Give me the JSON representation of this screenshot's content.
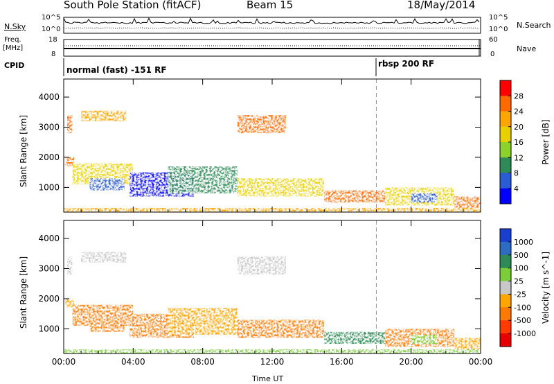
{
  "header": {
    "station": "South Pole Station (fitACF)",
    "beam": "Beam 15",
    "date": "18/May/2014"
  },
  "strip_labels": {
    "nsky": "N.Sky",
    "nsky_ticks": [
      "10^5",
      "10^0"
    ],
    "nsearch": "N.Search",
    "nsearch_ticks": [
      "10^5",
      "10^0"
    ],
    "freq_line1": "Freq.",
    "freq_line2": "[MHz]",
    "freq_ticks": [
      "18",
      "8"
    ],
    "nave": "Nave",
    "nave_ticks": [
      "60",
      "0"
    ],
    "cpid": "CPID",
    "cpid_modes": [
      {
        "label": "normal (fast) -151 RF",
        "start_hour": 0
      },
      {
        "label": "rbsp 200 RF",
        "start_hour": 18
      }
    ]
  },
  "chart_data": [
    {
      "type": "heatmap",
      "name": "power-panel",
      "xlabel": "",
      "ylabel": "Slant Range [km]",
      "xlim": [
        0,
        24
      ],
      "ylim": [
        180,
        4600
      ],
      "yticks": [
        1000,
        2000,
        3000,
        4000
      ],
      "colorbar": {
        "label": "Power [dB]",
        "ticks": [
          "28",
          "24",
          "20",
          "16",
          "12",
          "8",
          "4"
        ],
        "colors": [
          "#ff0000",
          "#ff6a00",
          "#ffa500",
          "#e8d000",
          "#8cd22a",
          "#2e8b57",
          "#2a5cd6",
          "#0000ff"
        ]
      },
      "regions": [
        {
          "x": [
            0.2,
            0.5
          ],
          "y": [
            2800,
            3400
          ],
          "level": 1
        },
        {
          "x": [
            1.0,
            3.6
          ],
          "y": [
            3200,
            3550
          ],
          "level": 2
        },
        {
          "x": [
            10.0,
            12.8
          ],
          "y": [
            2800,
            3400
          ],
          "level": 1
        },
        {
          "x": [
            0.1,
            0.6
          ],
          "y": [
            1700,
            2000
          ],
          "level": 1
        },
        {
          "x": [
            0.5,
            4.0
          ],
          "y": [
            1100,
            1800
          ],
          "level": 3
        },
        {
          "x": [
            1.5,
            3.5
          ],
          "y": [
            900,
            1300
          ],
          "level": 6
        },
        {
          "x": [
            3.8,
            7.5
          ],
          "y": [
            700,
            1500
          ],
          "level": 7
        },
        {
          "x": [
            6.0,
            10.0
          ],
          "y": [
            800,
            1700
          ],
          "level": 5
        },
        {
          "x": [
            10.0,
            15.0
          ],
          "y": [
            700,
            1300
          ],
          "level": 3
        },
        {
          "x": [
            15.0,
            18.5
          ],
          "y": [
            500,
            900
          ],
          "level": 1
        },
        {
          "x": [
            18.5,
            22.5
          ],
          "y": [
            400,
            1000
          ],
          "level": 3
        },
        {
          "x": [
            20.0,
            21.5
          ],
          "y": [
            500,
            800
          ],
          "level": 6
        },
        {
          "x": [
            22.5,
            24.0
          ],
          "y": [
            300,
            700
          ],
          "level": 1
        },
        {
          "x": [
            0.0,
            24.0
          ],
          "y": [
            180,
            320
          ],
          "level": 2
        }
      ]
    },
    {
      "type": "heatmap",
      "name": "velocity-panel",
      "xlabel": "Time UT",
      "ylabel": "Slant Range [km]",
      "xlim": [
        0,
        24
      ],
      "ylim": [
        180,
        4600
      ],
      "xticks": [
        "00:00",
        "04:00",
        "08:00",
        "12:00",
        "16:00",
        "20:00",
        "00:00"
      ],
      "yticks": [
        1000,
        2000,
        3000,
        4000
      ],
      "colorbar": {
        "label": "Velocity [m s^-1]",
        "ticks": [
          "1000",
          "500",
          "100",
          "25",
          "-25",
          "-100",
          "-500",
          "-1000"
        ],
        "colors": [
          "#1a3fd0",
          "#2e6bc4",
          "#2e8b57",
          "#7ccd3a",
          "#c8c8c8",
          "#ffa500",
          "#ff7a00",
          "#ff3b00",
          "#e60000"
        ]
      },
      "regions": [
        {
          "x": [
            0.2,
            0.5
          ],
          "y": [
            2800,
            3400
          ],
          "level": 4
        },
        {
          "x": [
            1.0,
            3.6
          ],
          "y": [
            3200,
            3550
          ],
          "level": 4
        },
        {
          "x": [
            10.0,
            12.8
          ],
          "y": [
            2800,
            3400
          ],
          "level": 4
        },
        {
          "x": [
            0.1,
            0.6
          ],
          "y": [
            1700,
            2000
          ],
          "level": 5
        },
        {
          "x": [
            0.5,
            4.0
          ],
          "y": [
            1100,
            1800
          ],
          "level": 6
        },
        {
          "x": [
            1.5,
            3.5
          ],
          "y": [
            900,
            1300
          ],
          "level": 6
        },
        {
          "x": [
            3.8,
            7.5
          ],
          "y": [
            700,
            1500
          ],
          "level": 6
        },
        {
          "x": [
            6.0,
            10.0
          ],
          "y": [
            800,
            1700
          ],
          "level": 5
        },
        {
          "x": [
            10.0,
            15.0
          ],
          "y": [
            700,
            1300
          ],
          "level": 6
        },
        {
          "x": [
            15.0,
            18.5
          ],
          "y": [
            500,
            900
          ],
          "level": 2
        },
        {
          "x": [
            18.5,
            22.5
          ],
          "y": [
            400,
            1000
          ],
          "level": 6
        },
        {
          "x": [
            20.0,
            21.5
          ],
          "y": [
            500,
            800
          ],
          "level": 3
        },
        {
          "x": [
            22.5,
            24.0
          ],
          "y": [
            300,
            700
          ],
          "level": 5
        },
        {
          "x": [
            0.0,
            24.0
          ],
          "y": [
            180,
            320
          ],
          "level": 3
        }
      ]
    }
  ]
}
